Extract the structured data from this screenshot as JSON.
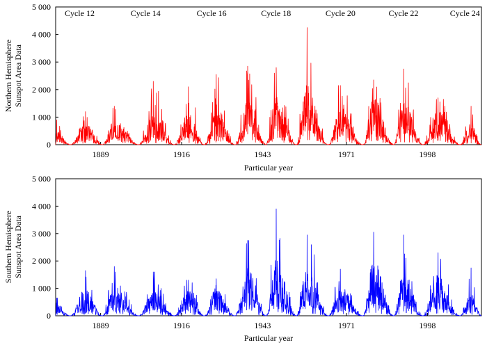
{
  "chart_data": [
    {
      "type": "line",
      "series": [
        {
          "name": "Northern Hemisphere Sunspot Area Data",
          "color": "#ff0000"
        }
      ],
      "ylabel": [
        "Northern Hemisphere",
        "Sunspot Area Data"
      ],
      "xlabel": "Particular year",
      "xlim": [
        1874,
        2016
      ],
      "ylim": [
        0,
        5000
      ],
      "yticks": [
        0,
        1000,
        2000,
        3000,
        4000,
        5000
      ],
      "ytick_labels": [
        "0",
        "1 000",
        "2 000",
        "3 000",
        "4 000",
        "5 000"
      ],
      "xticks": [
        1889,
        1916,
        1943,
        1971,
        1998
      ],
      "xtick_labels": [
        "1889",
        "1916",
        "1943",
        "1971",
        "1998"
      ],
      "cycle_labels": [
        {
          "text": "Cycle 12",
          "year": 1882
        },
        {
          "text": "Cycle 14",
          "year": 1904
        },
        {
          "text": "Cycle 16",
          "year": 1926
        },
        {
          "text": "Cycle 18",
          "year": 1947.5
        },
        {
          "text": "Cycle 20",
          "year": 1969
        },
        {
          "text": "Cycle 22",
          "year": 1990
        },
        {
          "text": "Cycle 24",
          "year": 2010.5
        }
      ],
      "cycles": [
        {
          "start": 1874,
          "max": 1874.3,
          "end": 1878.9,
          "peak": 900,
          "mean": 300
        },
        {
          "start": 1878.9,
          "max": 1883.9,
          "end": 1889.6,
          "peak": 1200,
          "mean": 520
        },
        {
          "start": 1889.6,
          "max": 1893.5,
          "end": 1901.7,
          "peak": 1400,
          "mean": 600
        },
        {
          "start": 1901.7,
          "max": 1906.5,
          "end": 1913.6,
          "peak": 2300,
          "mean": 650
        },
        {
          "start": 1913.6,
          "max": 1918.2,
          "end": 1923.6,
          "peak": 2100,
          "mean": 720
        },
        {
          "start": 1923.6,
          "max": 1927.5,
          "end": 1933.8,
          "peak": 2550,
          "mean": 780
        },
        {
          "start": 1933.8,
          "max": 1938.0,
          "end": 1944.2,
          "peak": 2850,
          "mean": 950
        },
        {
          "start": 1944.2,
          "max": 1947.5,
          "end": 1954.3,
          "peak": 2800,
          "mean": 1050
        },
        {
          "start": 1954.3,
          "max": 1957.8,
          "end": 1964.9,
          "peak": 4250,
          "mean": 1350
        },
        {
          "start": 1964.9,
          "max": 1968.9,
          "end": 1976.5,
          "peak": 2150,
          "mean": 830
        },
        {
          "start": 1976.5,
          "max": 1980.0,
          "end": 1986.8,
          "peak": 2350,
          "mean": 1050
        },
        {
          "start": 1986.8,
          "max": 1990.0,
          "end": 1996.4,
          "peak": 2750,
          "mean": 1000
        },
        {
          "start": 1996.4,
          "max": 2001.5,
          "end": 2008.9,
          "peak": 1700,
          "mean": 780
        },
        {
          "start": 2008.9,
          "max": 2012.5,
          "end": 2016.0,
          "peak": 1400,
          "mean": 500
        }
      ]
    },
    {
      "type": "line",
      "series": [
        {
          "name": "Southern Hemisphere Sunspot Area Data",
          "color": "#0000ff"
        }
      ],
      "ylabel": [
        "Southern Hemisphere",
        "Sunspot Area Data"
      ],
      "xlabel": "Particular year",
      "xlim": [
        1874,
        2016
      ],
      "ylim": [
        0,
        5000
      ],
      "yticks": [
        0,
        1000,
        2000,
        3000,
        4000,
        5000
      ],
      "ytick_labels": [
        "0",
        "1 000",
        "2 000",
        "3 000",
        "4 000",
        "5 000"
      ],
      "xticks": [
        1889,
        1916,
        1943,
        1971,
        1998
      ],
      "xtick_labels": [
        "1889",
        "1916",
        "1943",
        "1971",
        "1998"
      ],
      "cycle_labels": [],
      "cycles": [
        {
          "start": 1874,
          "max": 1874.3,
          "end": 1878.9,
          "peak": 650,
          "mean": 250
        },
        {
          "start": 1878.9,
          "max": 1883.9,
          "end": 1889.6,
          "peak": 1650,
          "mean": 600
        },
        {
          "start": 1889.6,
          "max": 1893.5,
          "end": 1901.7,
          "peak": 1800,
          "mean": 650
        },
        {
          "start": 1901.7,
          "max": 1906.5,
          "end": 1913.6,
          "peak": 1600,
          "mean": 580
        },
        {
          "start": 1913.6,
          "max": 1918.2,
          "end": 1923.6,
          "peak": 1300,
          "mean": 600
        },
        {
          "start": 1923.6,
          "max": 1927.5,
          "end": 1933.8,
          "peak": 1350,
          "mean": 620
        },
        {
          "start": 1933.8,
          "max": 1938.0,
          "end": 1944.2,
          "peak": 2750,
          "mean": 1050
        },
        {
          "start": 1944.2,
          "max": 1947.5,
          "end": 1954.3,
          "peak": 3900,
          "mean": 1250
        },
        {
          "start": 1954.3,
          "max": 1957.8,
          "end": 1964.9,
          "peak": 2950,
          "mean": 1100
        },
        {
          "start": 1964.9,
          "max": 1968.9,
          "end": 1976.5,
          "peak": 1700,
          "mean": 650
        },
        {
          "start": 1976.5,
          "max": 1980.0,
          "end": 1986.8,
          "peak": 3050,
          "mean": 1250
        },
        {
          "start": 1986.8,
          "max": 1990.0,
          "end": 1996.4,
          "peak": 2950,
          "mean": 1050
        },
        {
          "start": 1996.4,
          "max": 2001.5,
          "end": 2008.9,
          "peak": 2300,
          "mean": 780
        },
        {
          "start": 2008.9,
          "max": 2012.5,
          "end": 2016.0,
          "peak": 1750,
          "mean": 500
        }
      ]
    }
  ]
}
